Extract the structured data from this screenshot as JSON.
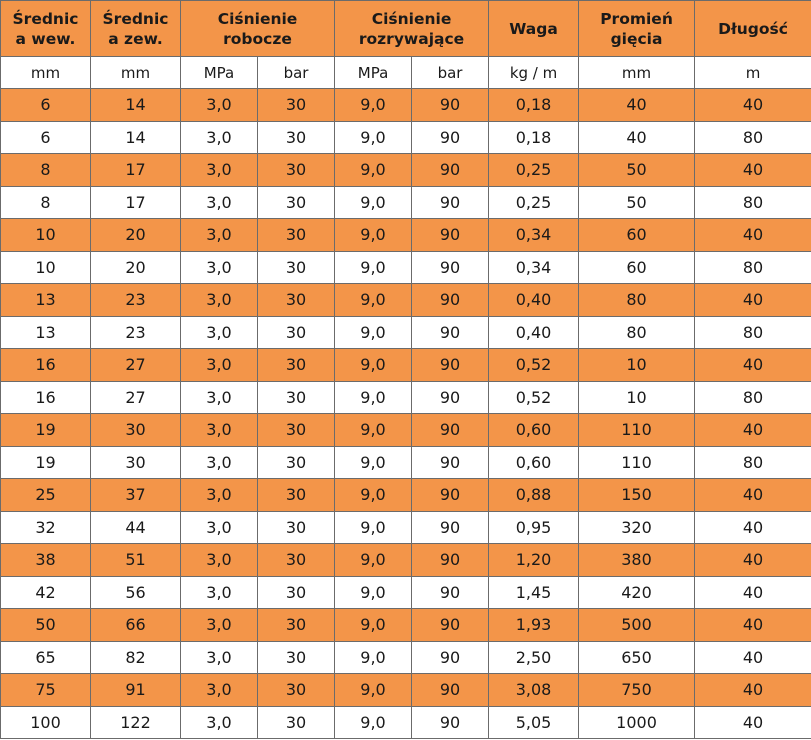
{
  "headers": [
    {
      "line1": "Średnic",
      "line2": "a wew."
    },
    {
      "line1": "Średnic",
      "line2": "a zew."
    },
    {
      "line1": "Ciśnienie",
      "line2": "robocze"
    },
    {
      "line1": "Ciśnienie",
      "line2": "rozrywające"
    },
    {
      "line1": "Waga",
      "line2": ""
    },
    {
      "line1": "Promień",
      "line2": "gięcia"
    },
    {
      "line1": "Długość",
      "line2": ""
    }
  ],
  "units": [
    "mm",
    "mm",
    "MPa",
    "bar",
    "MPa",
    "bar",
    "kg / m",
    "mm",
    "m"
  ],
  "row_colors": {
    "orange": "#f39549",
    "white": "#ffffff"
  },
  "rows": [
    [
      "6",
      "14",
      "3,0",
      "30",
      "9,0",
      "90",
      "0,18",
      "40",
      "40"
    ],
    [
      "6",
      "14",
      "3,0",
      "30",
      "9,0",
      "90",
      "0,18",
      "40",
      "80"
    ],
    [
      "8",
      "17",
      "3,0",
      "30",
      "9,0",
      "90",
      "0,25",
      "50",
      "40"
    ],
    [
      "8",
      "17",
      "3,0",
      "30",
      "9,0",
      "90",
      "0,25",
      "50",
      "80"
    ],
    [
      "10",
      "20",
      "3,0",
      "30",
      "9,0",
      "90",
      "0,34",
      "60",
      "40"
    ],
    [
      "10",
      "20",
      "3,0",
      "30",
      "9,0",
      "90",
      "0,34",
      "60",
      "80"
    ],
    [
      "13",
      "23",
      "3,0",
      "30",
      "9,0",
      "90",
      "0,40",
      "80",
      "40"
    ],
    [
      "13",
      "23",
      "3,0",
      "30",
      "9,0",
      "90",
      "0,40",
      "80",
      "80"
    ],
    [
      "16",
      "27",
      "3,0",
      "30",
      "9,0",
      "90",
      "0,52",
      "10",
      "40"
    ],
    [
      "16",
      "27",
      "3,0",
      "30",
      "9,0",
      "90",
      "0,52",
      "10",
      "80"
    ],
    [
      "19",
      "30",
      "3,0",
      "30",
      "9,0",
      "90",
      "0,60",
      "110",
      "40"
    ],
    [
      "19",
      "30",
      "3,0",
      "30",
      "9,0",
      "90",
      "0,60",
      "110",
      "80"
    ],
    [
      "25",
      "37",
      "3,0",
      "30",
      "9,0",
      "90",
      "0,88",
      "150",
      "40"
    ],
    [
      "32",
      "44",
      "3,0",
      "30",
      "9,0",
      "90",
      "0,95",
      "320",
      "40"
    ],
    [
      "38",
      "51",
      "3,0",
      "30",
      "9,0",
      "90",
      "1,20",
      "380",
      "40"
    ],
    [
      "42",
      "56",
      "3,0",
      "30",
      "9,0",
      "90",
      "1,45",
      "420",
      "40"
    ],
    [
      "50",
      "66",
      "3,0",
      "30",
      "9,0",
      "90",
      "1,93",
      "500",
      "40"
    ],
    [
      "65",
      "82",
      "3,0",
      "30",
      "9,0",
      "90",
      "2,50",
      "650",
      "40"
    ],
    [
      "75",
      "91",
      "3,0",
      "30",
      "9,0",
      "90",
      "3,08",
      "750",
      "40"
    ],
    [
      "100",
      "122",
      "3,0",
      "30",
      "9,0",
      "90",
      "5,05",
      "1000",
      "40"
    ]
  ]
}
